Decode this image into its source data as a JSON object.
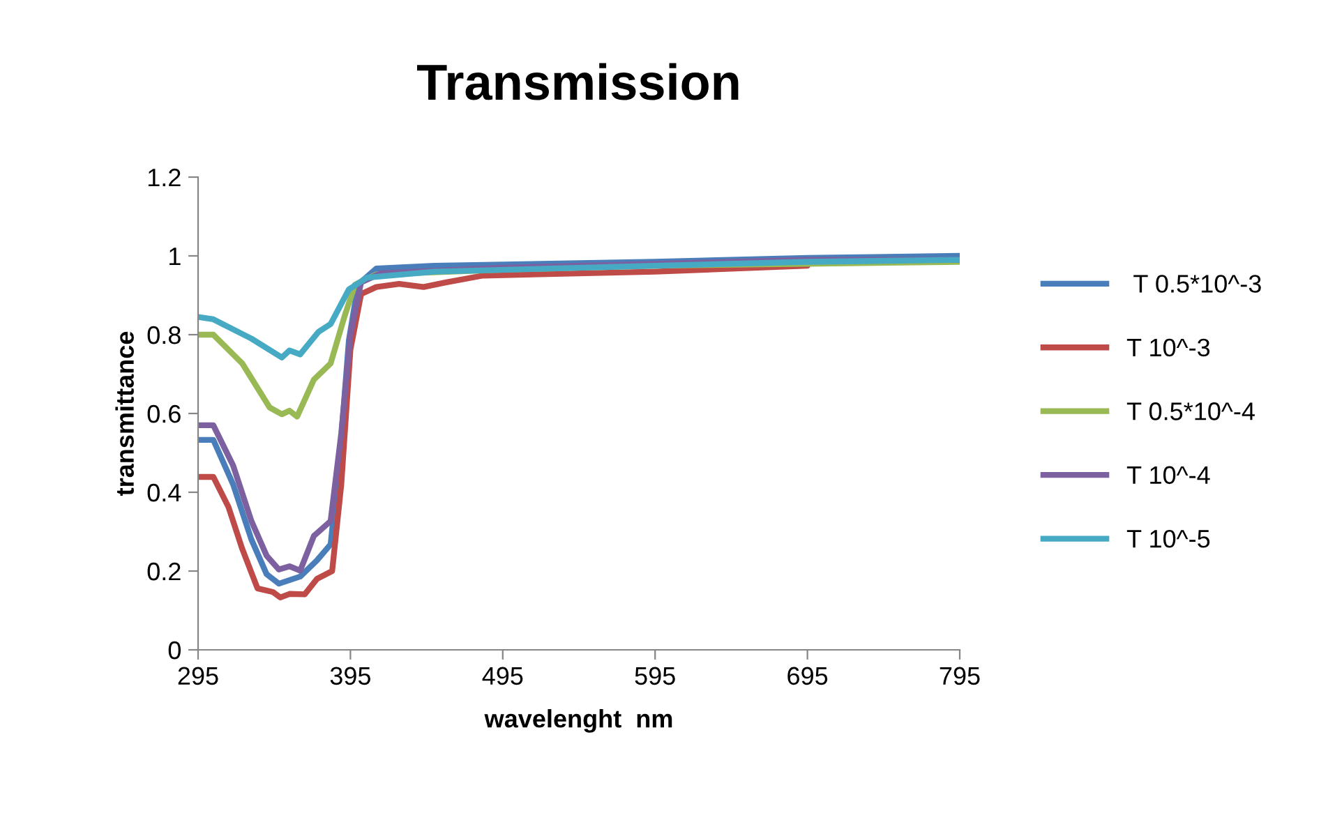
{
  "chart_data": {
    "type": "line",
    "title": "Transmission",
    "xlabel": "wavelenght  nm",
    "ylabel": "transmittance",
    "xlim": [
      295,
      795
    ],
    "xticks": [
      295,
      395,
      495,
      595,
      695,
      795
    ],
    "ylim": [
      0,
      1.2
    ],
    "yticks": [
      0,
      0.2,
      0.4,
      0.6,
      0.8,
      1,
      1.2
    ],
    "grid": false,
    "legend": "right",
    "marker": "none",
    "line_style": "solid",
    "series": [
      {
        "name": " T 0.5*10^-3",
        "color": "#4a7ebb",
        "x": [
          295,
          305,
          318,
          330,
          340,
          348,
          362,
          373,
          382,
          388,
          394,
          400,
          412,
          450,
          595,
          695,
          795
        ],
        "values": [
          0.533,
          0.533,
          0.42,
          0.28,
          0.192,
          0.168,
          0.186,
          0.227,
          0.268,
          0.49,
          0.786,
          0.927,
          0.968,
          0.975,
          0.985,
          0.995,
          1.0
        ]
      },
      {
        "name": "T 10^-3",
        "color": "#be4b48",
        "x": [
          295,
          305,
          315,
          324,
          334,
          344,
          349,
          355,
          365,
          373,
          383,
          389,
          395,
          402,
          412,
          427,
          443,
          458,
          482,
          595,
          695
        ],
        "values": [
          0.439,
          0.439,
          0.362,
          0.256,
          0.156,
          0.147,
          0.133,
          0.142,
          0.141,
          0.18,
          0.2,
          0.42,
          0.762,
          0.903,
          0.921,
          0.929,
          0.921,
          0.933,
          0.95,
          0.96,
          0.975
        ]
      },
      {
        "name": "T 0.5*10^-4",
        "color": "#98b954",
        "x": [
          295,
          305,
          324,
          342,
          350,
          355,
          360,
          371,
          382,
          391,
          398,
          412,
          495,
          595,
          695,
          795
        ],
        "values": [
          0.8,
          0.8,
          0.727,
          0.615,
          0.598,
          0.607,
          0.592,
          0.686,
          0.727,
          0.845,
          0.927,
          0.953,
          0.965,
          0.975,
          0.98,
          0.985
        ]
      },
      {
        "name": "T 10^-4",
        "color": "#7d60a0",
        "x": [
          295,
          305,
          318,
          330,
          340,
          348,
          355,
          362,
          371,
          382,
          389,
          395,
          402,
          415,
          495,
          595,
          695,
          795
        ],
        "values": [
          0.57,
          0.57,
          0.468,
          0.327,
          0.239,
          0.204,
          0.212,
          0.201,
          0.289,
          0.327,
          0.55,
          0.8,
          0.933,
          0.956,
          0.97,
          0.98,
          0.99,
          0.99
        ]
      },
      {
        "name": "T 10^-5",
        "color": "#46aac5",
        "x": [
          295,
          305,
          330,
          350,
          355,
          362,
          374,
          382,
          394,
          406,
          450,
          595,
          695,
          795
        ],
        "values": [
          0.845,
          0.839,
          0.79,
          0.742,
          0.76,
          0.75,
          0.807,
          0.827,
          0.915,
          0.945,
          0.96,
          0.975,
          0.985,
          0.99
        ]
      }
    ]
  }
}
